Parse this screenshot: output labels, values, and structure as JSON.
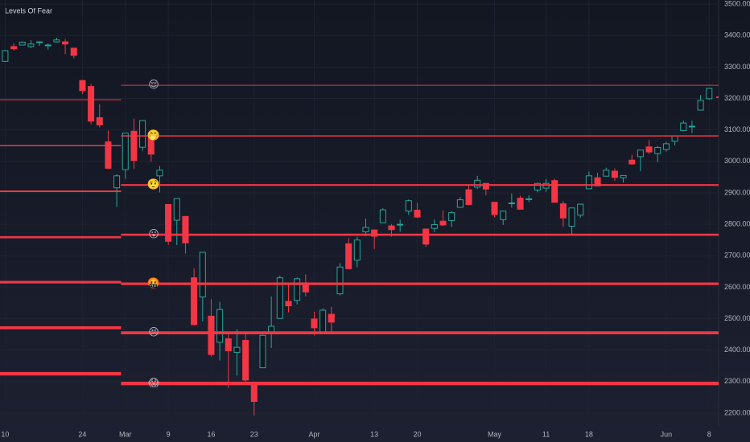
{
  "chart_data": {
    "type": "candlestick",
    "title": "Levels Of Fear",
    "ylim": [
      2108,
      3513
    ],
    "yticks": [
      {
        "value": 2200,
        "label": "2200.00"
      },
      {
        "value": 2300,
        "label": "2300.00"
      },
      {
        "value": 2400,
        "label": "2400.00"
      },
      {
        "value": 2500,
        "label": "2500.00"
      },
      {
        "value": 2600,
        "label": "2600.00"
      },
      {
        "value": 2700,
        "label": "2700.00"
      },
      {
        "value": 2800,
        "label": "2800.00"
      },
      {
        "value": 2900,
        "label": "2900.00"
      },
      {
        "value": 3000,
        "label": "3000.00"
      },
      {
        "value": 3100,
        "label": "3100.00"
      },
      {
        "value": 3200,
        "label": "3200.00"
      },
      {
        "value": 3300,
        "label": "3300.00"
      },
      {
        "value": 3400,
        "label": "3400.00"
      },
      {
        "value": 3500,
        "label": "3500.00"
      }
    ],
    "xlim": [
      -0.6,
      83.1
    ],
    "xticks": [
      {
        "value": 0,
        "label": "10"
      },
      {
        "value": 9,
        "label": "24"
      },
      {
        "value": 14,
        "label": "Mar"
      },
      {
        "value": 19,
        "label": "9"
      },
      {
        "value": 24,
        "label": "16"
      },
      {
        "value": 29,
        "label": "23"
      },
      {
        "value": 36,
        "label": "Apr"
      },
      {
        "value": 43,
        "label": "13"
      },
      {
        "value": 48,
        "label": "20"
      },
      {
        "value": 57,
        "label": "May"
      },
      {
        "value": 63,
        "label": "11"
      },
      {
        "value": 68,
        "label": "18"
      },
      {
        "value": 77,
        "label": "Jun"
      },
      {
        "value": 82,
        "label": "8"
      }
    ],
    "up_color": "#26a69a",
    "down_color": "#f23645",
    "level_color": "#f23645",
    "grid": true,
    "open": [
      3318,
      3365,
      3370,
      3365,
      3378,
      3369,
      3380,
      3380,
      3360,
      3257,
      3238,
      3139,
      3062,
      2916,
      2974,
      3096,
      3045,
      3075,
      2954,
      2863,
      2813,
      2825,
      2630,
      2569,
      2508,
      2425,
      2436,
      2393,
      2431,
      2290,
      2344,
      2457,
      2501,
      2555,
      2558,
      2614,
      2499,
      2458,
      2514,
      2579,
      2738,
      2686,
      2776,
      2782,
      2805,
      2795,
      2800,
      2842,
      2845,
      2785,
      2787,
      2810,
      2812,
      2854,
      2910,
      2918,
      2930,
      2870,
      2815,
      2868,
      2883,
      2879,
      2909,
      2915,
      2939,
      2865,
      2794,
      2829,
      2913,
      2948,
      2953,
      2969,
      2948,
      3004,
      3015,
      3046,
      3025,
      3038,
      3064,
      3098,
      3112,
      3163,
      3199
    ],
    "high": [
      3352,
      3375,
      3381,
      3385,
      3380,
      3375,
      3393,
      3389,
      3360,
      3259,
      3246,
      3182,
      3098,
      2959,
      3090,
      3136,
      3130,
      3083,
      2985,
      2863,
      2882,
      2825,
      2660,
      2711,
      2562,
      2553,
      2453,
      2466,
      2453,
      2300,
      2449,
      2571,
      2637,
      2615,
      2631,
      2641,
      2522,
      2533,
      2538,
      2676,
      2756,
      2760,
      2818,
      2783,
      2851,
      2801,
      2815,
      2879,
      2868,
      2785,
      2815,
      2844,
      2842,
      2887,
      2925,
      2954,
      2930,
      2870,
      2844,
      2898,
      2891,
      2892,
      2932,
      2944,
      2945,
      2874,
      2852,
      2865,
      2968,
      2964,
      2980,
      2978,
      2956,
      3021,
      3036,
      3068,
      3049,
      3062,
      3081,
      3130,
      3129,
      3211,
      3232
    ],
    "low": [
      3317,
      3352,
      3369,
      3360,
      3367,
      3355,
      3378,
      3341,
      3328,
      3214,
      3118,
      3108,
      2977,
      2855,
      2945,
      2976,
      3034,
      2999,
      2901,
      2734,
      2734,
      2707,
      2478,
      2492,
      2380,
      2367,
      2280,
      2319,
      2295,
      2192,
      2344,
      2407,
      2500,
      2520,
      2545,
      2571,
      2447,
      2455,
      2459,
      2574,
      2657,
      2664,
      2762,
      2721,
      2805,
      2761,
      2776,
      2830,
      2820,
      2728,
      2775,
      2794,
      2791,
      2852,
      2860,
      2912,
      2892,
      2822,
      2798,
      2853,
      2847,
      2871,
      2902,
      2903,
      2869,
      2793,
      2766,
      2821,
      2913,
      2922,
      2953,
      2938,
      2933,
      2988,
      2969,
      3023,
      2998,
      3031,
      3051,
      3098,
      3090,
      3163,
      3196
    ],
    "close": [
      3352,
      3358,
      3379,
      3373,
      3380,
      3370,
      3386,
      3373,
      3337,
      3225,
      3128,
      3116,
      2978,
      2954,
      3090,
      3003,
      3130,
      3023,
      2972,
      2746,
      2882,
      2741,
      2481,
      2711,
      2386,
      2529,
      2398,
      2409,
      2305,
      2237,
      2447,
      2476,
      2630,
      2541,
      2627,
      2585,
      2471,
      2527,
      2489,
      2664,
      2659,
      2750,
      2790,
      2762,
      2846,
      2783,
      2800,
      2875,
      2823,
      2737,
      2799,
      2798,
      2837,
      2878,
      2863,
      2940,
      2912,
      2831,
      2842,
      2868,
      2848,
      2881,
      2930,
      2930,
      2870,
      2820,
      2852,
      2864,
      2954,
      2922,
      2972,
      2949,
      2955,
      2992,
      3036,
      3030,
      3044,
      3056,
      3081,
      3122,
      3112,
      3194,
      3232
    ],
    "levels": [
      {
        "left": 3196,
        "right": 3242,
        "label": "😌"
      },
      {
        "left": 3050,
        "right": 3081,
        "label": "🤭"
      },
      {
        "left": 2905,
        "right": 2925,
        "label": "🤨"
      },
      {
        "left": 2759,
        "right": 2767,
        "label": "😮"
      },
      {
        "left": 2616,
        "right": 2611,
        "label": "🤬"
      },
      {
        "left": 2471,
        "right": 2455,
        "label": "😣"
      },
      {
        "left": 2325,
        "right": 2294,
        "label": "😱"
      }
    ]
  }
}
